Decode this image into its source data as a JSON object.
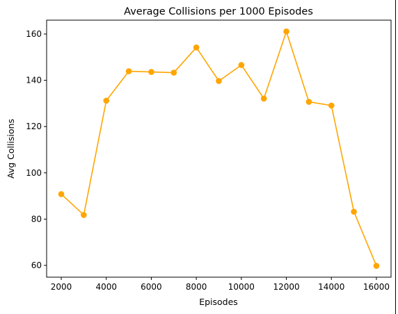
{
  "chart_data": {
    "type": "line",
    "title": "Average Collisions per 1000 Episodes",
    "xlabel": "Episodes",
    "ylabel": "Avg Collisions",
    "x": [
      2000,
      3000,
      4000,
      5000,
      6000,
      7000,
      8000,
      9000,
      10000,
      11000,
      12000,
      13000,
      14000,
      15000,
      16000
    ],
    "series": [
      {
        "name": "",
        "values": [
          90.8,
          81.8,
          131.2,
          143.9,
          143.6,
          143.3,
          154.2,
          139.7,
          146.6,
          132.1,
          161.1,
          130.7,
          129.1,
          83.2,
          59.8
        ],
        "color": "#ffa500",
        "marker": "circle"
      }
    ],
    "xlim": [
      1350,
      16650
    ],
    "ylim": [
      54.9,
      166.0
    ],
    "xticks": [
      2000,
      4000,
      6000,
      8000,
      10000,
      12000,
      14000,
      16000
    ],
    "yticks": [
      60,
      80,
      100,
      120,
      140,
      160
    ],
    "grid": false,
    "legend": "none"
  }
}
